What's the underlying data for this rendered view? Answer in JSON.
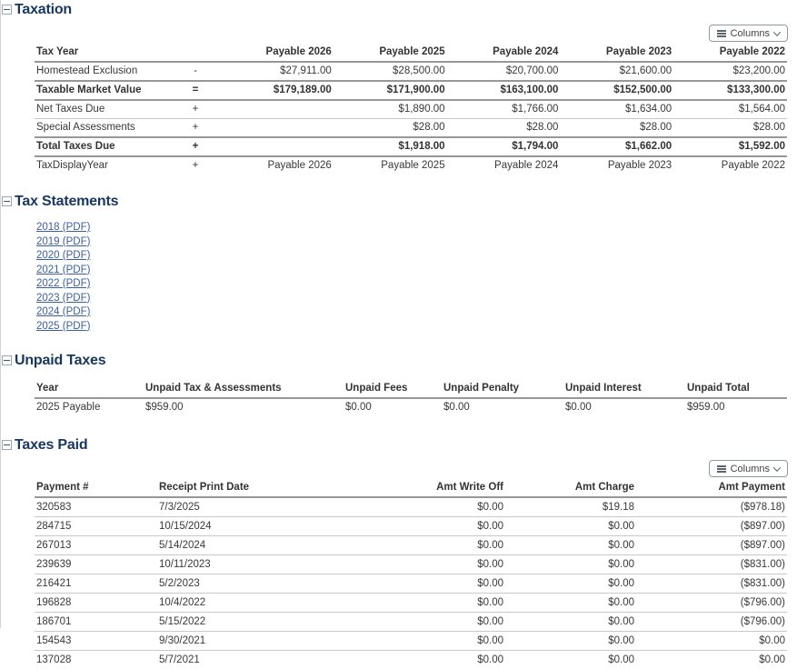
{
  "ui": {
    "columns_label": "Columns"
  },
  "colors": {
    "heading": "#17375e",
    "link": "#3a5fa0"
  },
  "taxation": {
    "title": "Taxation",
    "table": {
      "headers": [
        "Tax Year",
        "",
        "Payable 2026",
        "Payable 2025",
        "Payable 2024",
        "Payable 2023",
        "Payable 2022"
      ],
      "rows": [
        {
          "label": "Homestead Exclusion",
          "op": "-",
          "bold": false,
          "values": [
            "$27,911.00",
            "$28,500.00",
            "$20,700.00",
            "$21,600.00",
            "$23,200.00"
          ]
        },
        {
          "label": "Taxable Market Value",
          "op": "=",
          "bold": true,
          "values": [
            "$179,189.00",
            "$171,900.00",
            "$163,100.00",
            "$152,500.00",
            "$133,300.00"
          ]
        },
        {
          "label": "Net Taxes Due",
          "op": "+",
          "bold": false,
          "values": [
            "",
            "$1,890.00",
            "$1,766.00",
            "$1,634.00",
            "$1,564.00"
          ]
        },
        {
          "label": "Special Assessments",
          "op": "+",
          "bold": false,
          "values": [
            "",
            "$28.00",
            "$28.00",
            "$28.00",
            "$28.00"
          ]
        },
        {
          "label": "Total Taxes Due",
          "op": "+",
          "bold": true,
          "values": [
            "",
            "$1,918.00",
            "$1,794.00",
            "$1,662.00",
            "$1,592.00"
          ]
        },
        {
          "label": "TaxDisplayYear",
          "op": "+",
          "bold": false,
          "values": [
            "Payable 2026",
            "Payable 2025",
            "Payable 2024",
            "Payable 2023",
            "Payable 2022"
          ]
        }
      ]
    }
  },
  "tax_statements": {
    "title": "Tax Statements",
    "links": [
      "2018 (PDF)",
      "2019 (PDF)",
      "2020 (PDF)",
      "2021 (PDF)",
      "2022 (PDF)",
      "2023 (PDF)",
      "2024 (PDF)",
      "2025 (PDF)"
    ]
  },
  "unpaid_taxes": {
    "title": "Unpaid Taxes",
    "headers": [
      "Year",
      "Unpaid Tax & Assessments",
      "Unpaid Fees",
      "Unpaid Penalty",
      "Unpaid Interest",
      "Unpaid Total"
    ],
    "rows": [
      [
        "2025 Payable",
        "$959.00",
        "$0.00",
        "$0.00",
        "$0.00",
        "$959.00"
      ]
    ]
  },
  "taxes_paid": {
    "title": "Taxes Paid",
    "headers": [
      "Payment #",
      "Receipt Print Date",
      "Amt Write Off",
      "Amt Charge",
      "Amt Payment"
    ],
    "rows": [
      [
        "320583",
        "7/3/2025",
        "$0.00",
        "$19.18",
        "($978.18)"
      ],
      [
        "284715",
        "10/15/2024",
        "$0.00",
        "$0.00",
        "($897.00)"
      ],
      [
        "267013",
        "5/14/2024",
        "$0.00",
        "$0.00",
        "($897.00)"
      ],
      [
        "239639",
        "10/11/2023",
        "$0.00",
        "$0.00",
        "($831.00)"
      ],
      [
        "216421",
        "5/2/2023",
        "$0.00",
        "$0.00",
        "($831.00)"
      ],
      [
        "196828",
        "10/4/2022",
        "$0.00",
        "$0.00",
        "($796.00)"
      ],
      [
        "186701",
        "5/15/2022",
        "$0.00",
        "$0.00",
        "($796.00)"
      ],
      [
        "154543",
        "9/30/2021",
        "$0.00",
        "$0.00",
        "$0.00"
      ],
      [
        "137028",
        "5/7/2021",
        "$0.00",
        "$0.00",
        "$0.00"
      ]
    ]
  }
}
